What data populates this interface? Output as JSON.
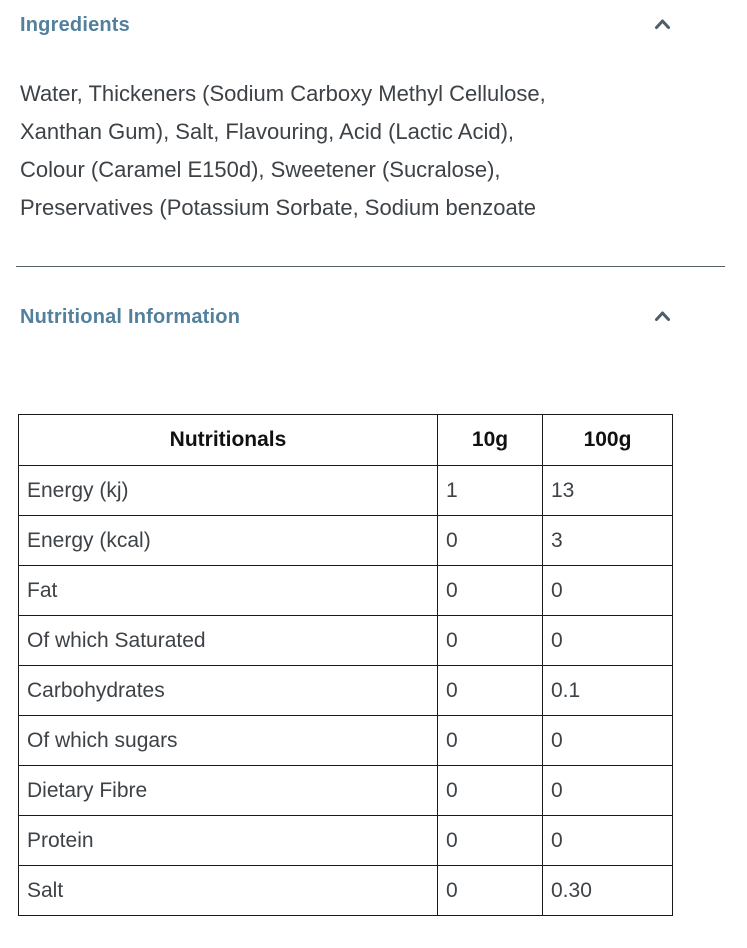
{
  "colors": {
    "heading": "#53809c",
    "body_text": "#3d4247",
    "chevron": "#4d5f6c",
    "table_border": "#1a1a1a",
    "divider": "#555f66"
  },
  "ingredients_section": {
    "title": "Ingredients",
    "chevron_icon": "chevron-up-icon",
    "body": "Water, Thickeners (Sodium Carboxy Methyl Cellulose,\nXanthan Gum), Salt, Flavouring, Acid (Lactic Acid),\nColour (Caramel E150d), Sweetener (Sucralose),\nPreservatives (Potassium Sorbate, Sodium benzoate"
  },
  "nutrition_section": {
    "title": "Nutritional Information",
    "chevron_icon": "chevron-up-icon"
  },
  "chart_data": {
    "type": "table",
    "title": "Nutritionals",
    "headers": [
      "Nutritionals",
      "10g",
      "100g"
    ],
    "rows": [
      [
        "Energy (kj)",
        "1",
        "13"
      ],
      [
        "Energy (kcal)",
        "0",
        "3"
      ],
      [
        "Fat",
        "0",
        "0"
      ],
      [
        "Of which Saturated",
        "0",
        "0"
      ],
      [
        "Carbohydrates",
        "0",
        "0.1"
      ],
      [
        "Of which sugars",
        "0",
        "0"
      ],
      [
        "Dietary Fibre",
        "0",
        "0"
      ],
      [
        "Protein",
        "0",
        "0"
      ],
      [
        "Salt",
        "0",
        "0.30"
      ]
    ]
  }
}
